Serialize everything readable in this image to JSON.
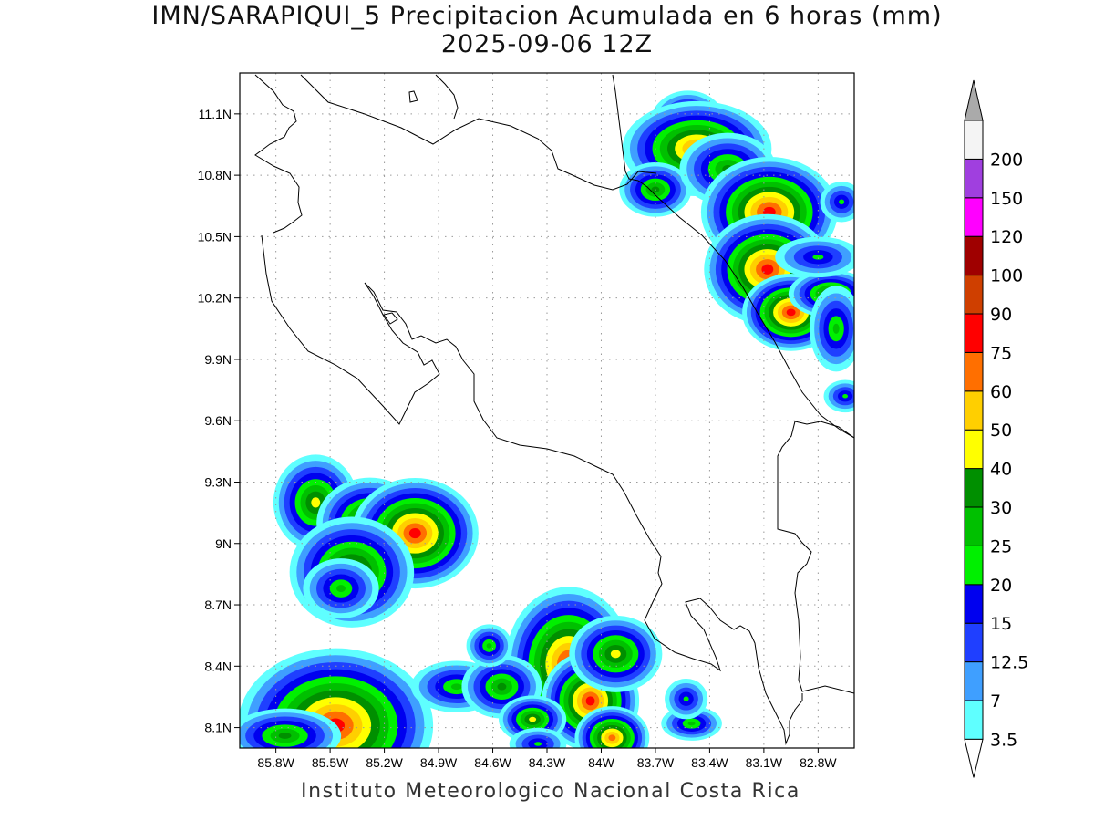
{
  "title": {
    "line1": "IMN/SARAPIQUI_5 Precipitacion Acumulada en 6 horas (mm)",
    "line2": "2025-09-06 12Z"
  },
  "footer": "Instituto Meteorologico Nacional Costa Rica",
  "map_extent": {
    "lon_min": -86.0,
    "lon_max": -82.6,
    "lat_min": 8.0,
    "lat_max": 11.3
  },
  "axes": {
    "lon_ticks": [
      {
        "value": -85.8,
        "label": "85.8W"
      },
      {
        "value": -85.5,
        "label": "85.5W"
      },
      {
        "value": -85.2,
        "label": "85.2W"
      },
      {
        "value": -84.9,
        "label": "84.9W"
      },
      {
        "value": -84.6,
        "label": "84.6W"
      },
      {
        "value": -84.3,
        "label": "84.3W"
      },
      {
        "value": -84.0,
        "label": "84W"
      },
      {
        "value": -83.7,
        "label": "83.7W"
      },
      {
        "value": -83.4,
        "label": "83.4W"
      },
      {
        "value": -83.1,
        "label": "83.1W"
      },
      {
        "value": -82.8,
        "label": "82.8W"
      }
    ],
    "lat_ticks": [
      {
        "value": 11.1,
        "label": "11.1N"
      },
      {
        "value": 10.8,
        "label": "10.8N"
      },
      {
        "value": 10.5,
        "label": "10.5N"
      },
      {
        "value": 10.2,
        "label": "10.2N"
      },
      {
        "value": 9.9,
        "label": "9.9N"
      },
      {
        "value": 9.6,
        "label": "9.6N"
      },
      {
        "value": 9.3,
        "label": "9.3N"
      },
      {
        "value": 9.0,
        "label": "9N"
      },
      {
        "value": 8.7,
        "label": "8.7N"
      },
      {
        "value": 8.4,
        "label": "8.4N"
      },
      {
        "value": 8.1,
        "label": "8.1N"
      }
    ]
  },
  "colorbar": {
    "levels": [
      {
        "color": "#5fffff",
        "label": "3.5"
      },
      {
        "color": "#3f9fff",
        "label": "7"
      },
      {
        "color": "#1f3fff",
        "label": "12.5"
      },
      {
        "color": "#0000ef",
        "label": "15"
      },
      {
        "color": "#00f000",
        "label": "20"
      },
      {
        "color": "#00c000",
        "label": "25"
      },
      {
        "color": "#008f00",
        "label": "30"
      },
      {
        "color": "#ffff00",
        "label": "40"
      },
      {
        "color": "#ffcf00",
        "label": "50"
      },
      {
        "color": "#ff6f00",
        "label": "60"
      },
      {
        "color": "#ff0000",
        "label": "75"
      },
      {
        "color": "#cf3f00",
        "label": "90"
      },
      {
        "color": "#9f0000",
        "label": "100"
      },
      {
        "color": "#ff00ff",
        "label": "120"
      },
      {
        "color": "#a03fdf",
        "label": "150"
      },
      {
        "color": "#f4f4f4",
        "label": "200"
      }
    ],
    "over_color": "#aaaaaa",
    "under_color": "#ffffff"
  },
  "precip_cells": [
    {
      "lon": -83.52,
      "lat": 11.05,
      "rx": 0.09,
      "ry": 0.07,
      "mm": 40
    },
    {
      "lon": -83.47,
      "lat": 10.93,
      "rx": 0.16,
      "ry": 0.09,
      "mm": 60
    },
    {
      "lon": -83.7,
      "lat": 10.73,
      "rx": 0.09,
      "ry": 0.06,
      "mm": 30
    },
    {
      "lon": -83.3,
      "lat": 10.83,
      "rx": 0.12,
      "ry": 0.08,
      "mm": 30
    },
    {
      "lon": -83.07,
      "lat": 10.62,
      "rx": 0.14,
      "ry": 0.1,
      "mm": 75
    },
    {
      "lon": -83.08,
      "lat": 10.34,
      "rx": 0.13,
      "ry": 0.1,
      "mm": 75
    },
    {
      "lon": -82.95,
      "lat": 10.13,
      "rx": 0.1,
      "ry": 0.07,
      "mm": 75
    },
    {
      "lon": -82.73,
      "lat": 10.22,
      "rx": 0.1,
      "ry": 0.05,
      "mm": 40
    },
    {
      "lon": -82.7,
      "lat": 10.05,
      "rx": 0.07,
      "ry": 0.1,
      "mm": 25
    },
    {
      "lon": -82.8,
      "lat": 10.4,
      "rx": 0.12,
      "ry": 0.05,
      "mm": 20
    },
    {
      "lon": -82.67,
      "lat": 10.67,
      "rx": 0.06,
      "ry": 0.05,
      "mm": 20
    },
    {
      "lon": -82.65,
      "lat": 9.72,
      "rx": 0.06,
      "ry": 0.04,
      "mm": 20
    },
    {
      "lon": -85.58,
      "lat": 9.2,
      "rx": 0.1,
      "ry": 0.1,
      "mm": 40
    },
    {
      "lon": -85.28,
      "lat": 9.1,
      "rx": 0.12,
      "ry": 0.09,
      "mm": 50
    },
    {
      "lon": -85.03,
      "lat": 9.05,
      "rx": 0.13,
      "ry": 0.1,
      "mm": 75
    },
    {
      "lon": -85.38,
      "lat": 8.86,
      "rx": 0.14,
      "ry": 0.11,
      "mm": 50
    },
    {
      "lon": -85.44,
      "lat": 8.78,
      "rx": 0.1,
      "ry": 0.07,
      "mm": 25
    },
    {
      "lon": -84.18,
      "lat": 8.41,
      "rx": 0.13,
      "ry": 0.14,
      "mm": 75
    },
    {
      "lon": -84.06,
      "lat": 8.23,
      "rx": 0.1,
      "ry": 0.09,
      "mm": 75
    },
    {
      "lon": -83.92,
      "lat": 8.46,
      "rx": 0.11,
      "ry": 0.08,
      "mm": 40
    },
    {
      "lon": -83.94,
      "lat": 8.05,
      "rx": 0.08,
      "ry": 0.06,
      "mm": 60
    },
    {
      "lon": -85.47,
      "lat": 8.11,
      "rx": 0.2,
      "ry": 0.14,
      "mm": 75
    },
    {
      "lon": -85.75,
      "lat": 8.06,
      "rx": 0.14,
      "ry": 0.06,
      "mm": 30
    },
    {
      "lon": -84.8,
      "lat": 8.3,
      "rx": 0.12,
      "ry": 0.06,
      "mm": 25
    },
    {
      "lon": -84.55,
      "lat": 8.3,
      "rx": 0.1,
      "ry": 0.07,
      "mm": 30
    },
    {
      "lon": -84.62,
      "lat": 8.5,
      "rx": 0.06,
      "ry": 0.05,
      "mm": 25
    },
    {
      "lon": -84.38,
      "lat": 8.14,
      "rx": 0.08,
      "ry": 0.05,
      "mm": 40
    },
    {
      "lon": -83.5,
      "lat": 8.12,
      "rx": 0.08,
      "ry": 0.04,
      "mm": 25
    },
    {
      "lon": -83.53,
      "lat": 8.24,
      "rx": 0.06,
      "ry": 0.05,
      "mm": 20
    },
    {
      "lon": -84.35,
      "lat": 8.02,
      "rx": 0.08,
      "ry": 0.04,
      "mm": 20
    }
  ]
}
